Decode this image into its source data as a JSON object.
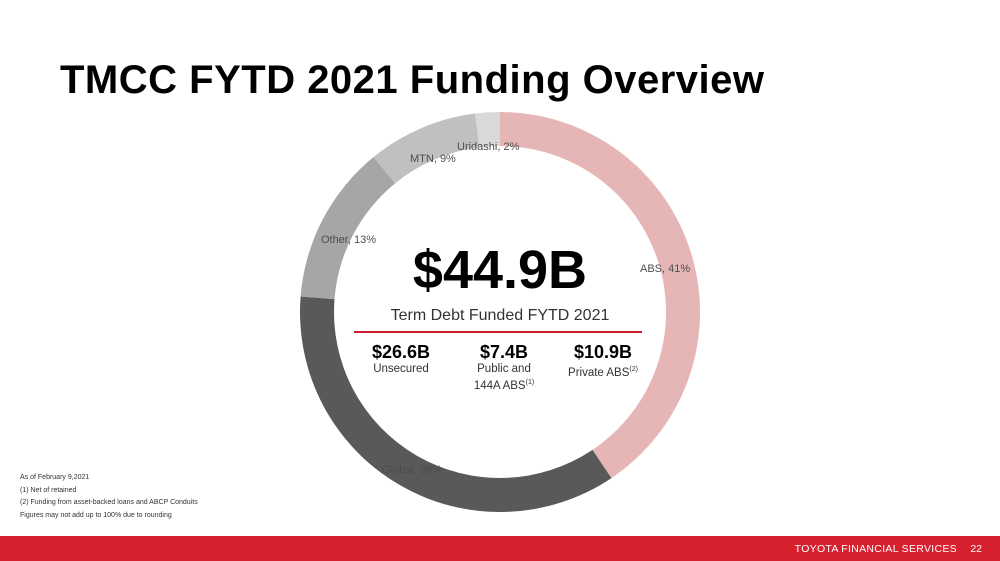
{
  "title": "TMCC FYTD 2021 Funding Overview",
  "chart_data": {
    "type": "pie",
    "variant": "donut",
    "start": "top",
    "direction": "clockwise",
    "slices": [
      {
        "label": "ABS, 41%",
        "value": 41,
        "color": "#e6b6b6"
      },
      {
        "label": "Global, 36%",
        "value": 36,
        "color": "#595959"
      },
      {
        "label": "Other, 13%",
        "value": 13,
        "color": "#a6a6a6"
      },
      {
        "label": "MTN, 9%",
        "value": 9,
        "color": "#c0c0c0"
      },
      {
        "label": "Uridashi, 2%",
        "value": 2,
        "color": "#d9d9d9"
      }
    ]
  },
  "center": {
    "total": "$44.9B",
    "subtitle": "Term Debt Funded FYTD 2021",
    "stats": [
      {
        "value": "$26.6B",
        "desc": "Unsecured",
        "note": ""
      },
      {
        "value": "$7.4B",
        "desc": "Public and",
        "desc2": "144A ABS",
        "note": "(1)"
      },
      {
        "value": "$10.9B",
        "desc": "Private ABS",
        "note": "(2)"
      }
    ]
  },
  "footnotes": [
    "As of February 9,2021",
    "(1)    Net of retained",
    "(2)    Funding from asset-backed loans and ABCP Conduits",
    "Figures may not add up to 100% due to rounding"
  ],
  "footer": {
    "company": "TOYOTA FINANCIAL SERVICES",
    "page": "22"
  },
  "colors": {
    "accent": "#d8212e"
  }
}
